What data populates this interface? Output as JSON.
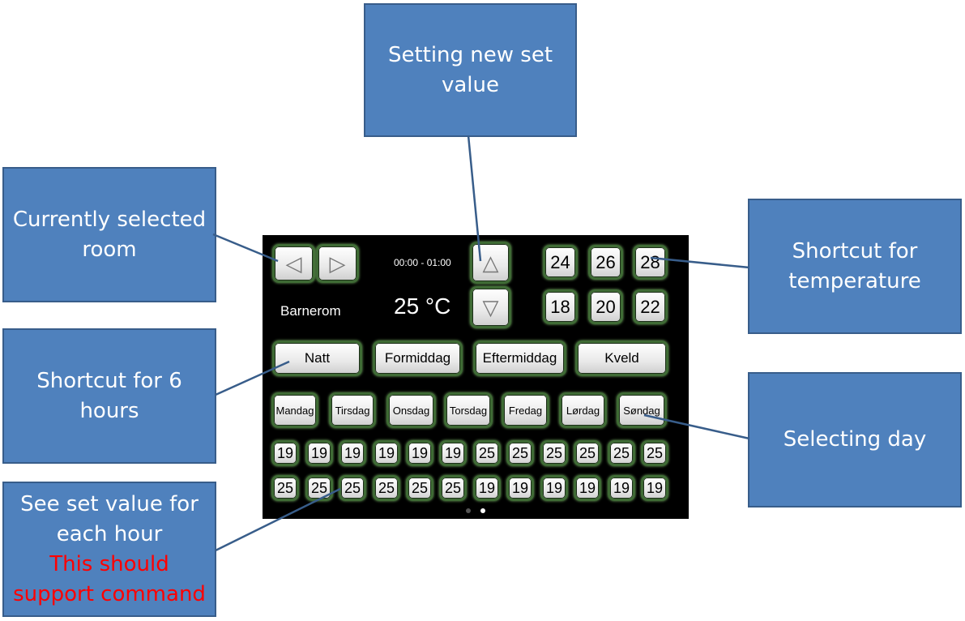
{
  "callouts": {
    "setting": [
      "Setting new set",
      "value"
    ],
    "room": [
      "Currently selected",
      "room"
    ],
    "temp": [
      "Shortcut for",
      "temperature"
    ],
    "hours": [
      "Shortcut for 6",
      "hours"
    ],
    "day": [
      "Selecting day"
    ],
    "hour_value": [
      "See set value for",
      "each hour"
    ],
    "hour_value_note": [
      "This should",
      "support command"
    ]
  },
  "panel": {
    "time_range": "00:00 - 01:00",
    "room_name": "Barnerom",
    "current_temp": "25 °C",
    "arrows": {
      "left": "◁",
      "right": "▷",
      "up": "△",
      "down": "▽"
    },
    "temp_shortcuts": [
      "24",
      "26",
      "28",
      "18",
      "20",
      "22"
    ],
    "time_periods": [
      "Natt",
      "Formiddag",
      "Eftermiddag",
      "Kveld"
    ],
    "days": [
      "Mandag",
      "Tirsdag",
      "Onsdag",
      "Torsdag",
      "Fredag",
      "Lørdag",
      "Søndag"
    ],
    "hour_values_row1": [
      "19",
      "19",
      "19",
      "19",
      "19",
      "19",
      "25",
      "25",
      "25",
      "25",
      "25",
      "25"
    ],
    "hour_values_row2": [
      "25",
      "25",
      "25",
      "25",
      "25",
      "25",
      "19",
      "19",
      "19",
      "19",
      "19",
      "19"
    ],
    "page_dots": {
      "count": 2,
      "active": 2
    }
  },
  "colors": {
    "callout_fill": "#4f81bd",
    "callout_border": "#385d8a",
    "note_text": "#ff0000",
    "button_border": "#3f6b35",
    "panel_bg": "#000000"
  }
}
